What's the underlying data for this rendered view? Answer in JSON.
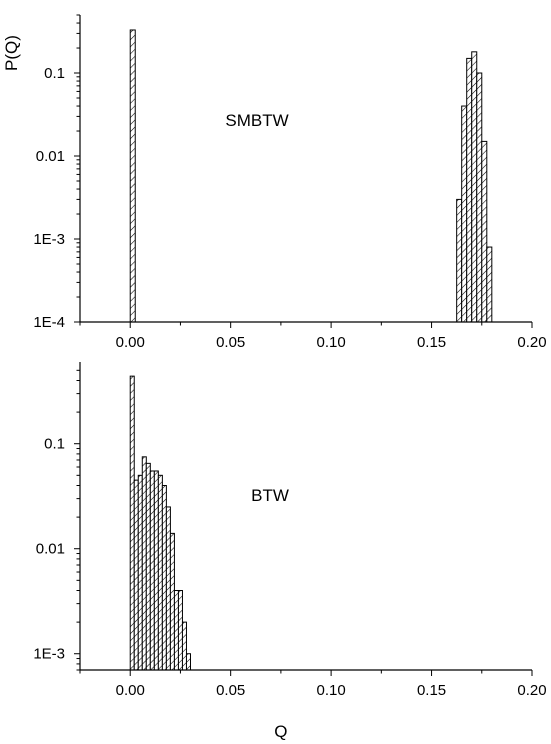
{
  "chart_data": [
    {
      "type": "bar",
      "annotation": "SMBTW",
      "ylabel": "P(Q)",
      "xlabel": "",
      "y_scale": "log",
      "xlim": [
        -0.025,
        0.2
      ],
      "ylim": [
        0.0001,
        0.5
      ],
      "x_ticks": [
        0.0,
        0.05,
        0.1,
        0.15,
        0.2
      ],
      "x_tick_labels": [
        "0.00",
        "0.05",
        "0.10",
        "0.15",
        "0.20"
      ],
      "y_ticks": [
        0.0001,
        0.001,
        0.01,
        0.1
      ],
      "y_tick_labels": [
        "1E-4",
        "1E-3",
        "0.01",
        "0.1"
      ],
      "bin_width": 0.0025,
      "x": [
        0.0,
        0.1625,
        0.165,
        0.1675,
        0.17,
        0.1725,
        0.175,
        0.1775
      ],
      "values": [
        0.33,
        0.003,
        0.04,
        0.15,
        0.18,
        0.1,
        0.015,
        0.0008
      ]
    },
    {
      "type": "bar",
      "annotation": "BTW",
      "ylabel": "",
      "xlabel": "Q",
      "y_scale": "log",
      "xlim": [
        -0.025,
        0.2
      ],
      "ylim": [
        0.0007,
        0.6
      ],
      "x_ticks": [
        0.0,
        0.05,
        0.1,
        0.15,
        0.2
      ],
      "x_tick_labels": [
        "0.00",
        "0.05",
        "0.10",
        "0.15",
        "0.20"
      ],
      "y_ticks": [
        0.001,
        0.01,
        0.1
      ],
      "y_tick_labels": [
        "1E-3",
        "0.01",
        "0.1"
      ],
      "bin_width": 0.002,
      "x": [
        0.0,
        0.002,
        0.004,
        0.006,
        0.008,
        0.01,
        0.012,
        0.014,
        0.016,
        0.018,
        0.02,
        0.022,
        0.024,
        0.026,
        0.028
      ],
      "values": [
        0.44,
        0.045,
        0.05,
        0.075,
        0.065,
        0.055,
        0.055,
        0.05,
        0.04,
        0.025,
        0.014,
        0.004,
        0.004,
        0.002,
        0.001
      ]
    }
  ]
}
